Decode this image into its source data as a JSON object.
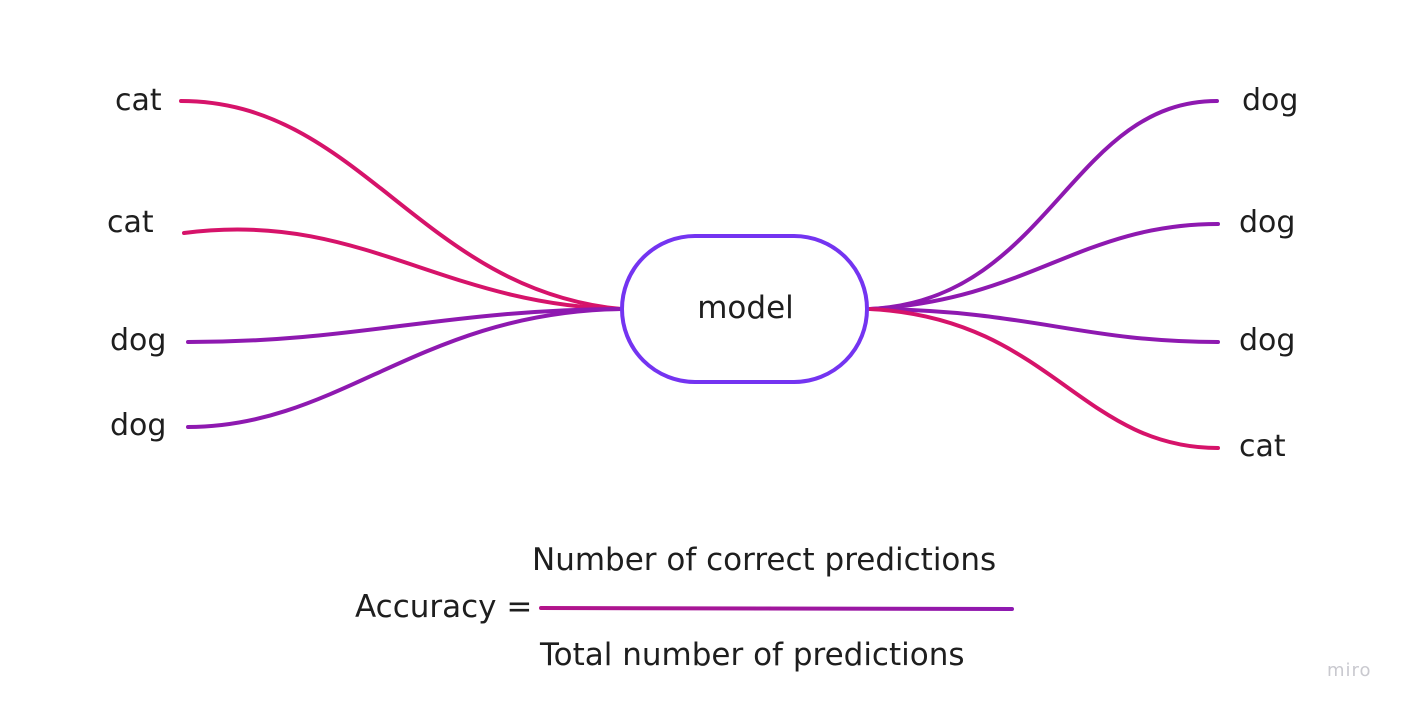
{
  "colors": {
    "cat_line": "#d6136a",
    "dog_line": "#8e19b0",
    "node_stroke": "#7434f1",
    "text": "#1e1e1e",
    "watermark": "#c9c9cf"
  },
  "model": {
    "label": "model"
  },
  "inputs": [
    {
      "label": "cat",
      "class": "cat"
    },
    {
      "label": "cat",
      "class": "cat"
    },
    {
      "label": "dog",
      "class": "dog"
    },
    {
      "label": "dog",
      "class": "dog"
    }
  ],
  "outputs": [
    {
      "label": "dog",
      "class": "dog"
    },
    {
      "label": "dog",
      "class": "dog"
    },
    {
      "label": "dog",
      "class": "dog"
    },
    {
      "label": "cat",
      "class": "cat"
    }
  ],
  "formula": {
    "lhs": "Accuracy =",
    "numerator": "Number of correct predictions",
    "denominator": "Total number of predictions"
  },
  "watermark": "miro"
}
